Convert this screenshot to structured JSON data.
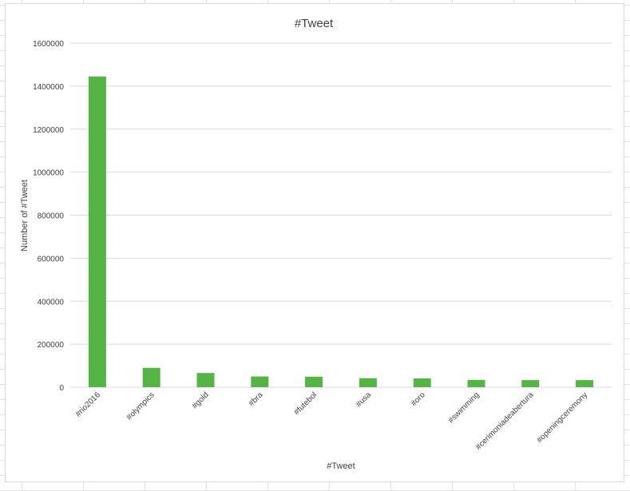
{
  "chart_data": {
    "type": "bar",
    "title": "#Tweet",
    "xlabel": "#Tweet",
    "ylabel": "Number of #Tweet",
    "categories": [
      "#rio2016",
      "#olympics",
      "#gold",
      "#bra",
      "#futebol",
      "#usa",
      "#oro",
      "#swimming",
      "#cerimoniadeabertura",
      "#openingceremony"
    ],
    "values": [
      1445000,
      90000,
      66000,
      50000,
      49000,
      42000,
      41000,
      34000,
      33000,
      33000
    ],
    "ylim": [
      0,
      1600000
    ],
    "yticks": [
      "0",
      "200000",
      "400000",
      "600000",
      "800000",
      "1000000",
      "1200000",
      "1400000",
      "1600000"
    ],
    "grid": true,
    "legend": "none",
    "bar_color": "#56b447",
    "grid_color": "#d9d9d9"
  }
}
